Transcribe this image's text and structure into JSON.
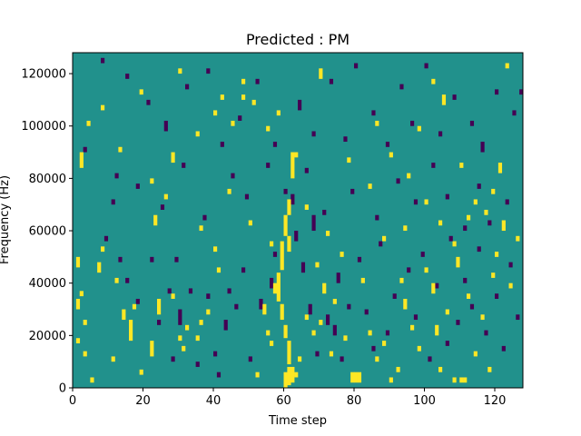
{
  "chart_data": {
    "type": "heatmap",
    "title": "Predicted : PM",
    "xlabel": "Time step",
    "ylabel": "Frequency (Hz)",
    "xlim": [
      0,
      128
    ],
    "ylim": [
      0,
      128000
    ],
    "xticks": [
      0,
      20,
      40,
      60,
      80,
      100,
      120
    ],
    "yticks": [
      0,
      20000,
      40000,
      60000,
      80000,
      100000,
      120000
    ],
    "xtick_labels": [
      "0",
      "20",
      "40",
      "60",
      "80",
      "100",
      "120"
    ],
    "ytick_labels": [
      "0",
      "20000",
      "40000",
      "60000",
      "80000",
      "100000",
      "120000"
    ],
    "grid": "128x128",
    "colormap": "viridis",
    "colors": {
      "background": "#21918c",
      "high": "#fde725",
      "low": "#440154"
    },
    "background_value": 0,
    "high_cells": [
      [
        60,
        0,
        6
      ],
      [
        61,
        1,
        8
      ],
      [
        62,
        2,
        8
      ],
      [
        61,
        9,
        18
      ],
      [
        60,
        19,
        24
      ],
      [
        59,
        26,
        32
      ],
      [
        58,
        33,
        44
      ],
      [
        59,
        45,
        56
      ],
      [
        61,
        52,
        58
      ],
      [
        60,
        58,
        66
      ],
      [
        61,
        66,
        72
      ],
      [
        62,
        80,
        90
      ],
      [
        2,
        84,
        90
      ],
      [
        1,
        46,
        50
      ],
      [
        1,
        30,
        34
      ],
      [
        2,
        35,
        37
      ],
      [
        3,
        24,
        26
      ],
      [
        1,
        17,
        19
      ],
      [
        3,
        12,
        14
      ],
      [
        5,
        2,
        4
      ],
      [
        7,
        44,
        48
      ],
      [
        8,
        52,
        54
      ],
      [
        11,
        10,
        12
      ],
      [
        12,
        40,
        42
      ],
      [
        14,
        26,
        30
      ],
      [
        16,
        18,
        26
      ],
      [
        17,
        30,
        32
      ],
      [
        19,
        5,
        7
      ],
      [
        22,
        12,
        18
      ],
      [
        24,
        28,
        34
      ],
      [
        23,
        62,
        66
      ],
      [
        26,
        72,
        74
      ],
      [
        28,
        34,
        36
      ],
      [
        30,
        18,
        20
      ],
      [
        31,
        14,
        16
      ],
      [
        32,
        22,
        24
      ],
      [
        35,
        18,
        20
      ],
      [
        36,
        24,
        26
      ],
      [
        38,
        28,
        30
      ],
      [
        36,
        60,
        62
      ],
      [
        40,
        52,
        54
      ],
      [
        41,
        44,
        46
      ],
      [
        42,
        110,
        112
      ],
      [
        45,
        100,
        102
      ],
      [
        48,
        116,
        118
      ],
      [
        51,
        108,
        110
      ],
      [
        52,
        4,
        6
      ],
      [
        54,
        28,
        32
      ],
      [
        55,
        20,
        22
      ],
      [
        56,
        16,
        18
      ],
      [
        57,
        36,
        40
      ],
      [
        63,
        4,
        6
      ],
      [
        64,
        10,
        12
      ],
      [
        66,
        26,
        28
      ],
      [
        68,
        20,
        22
      ],
      [
        69,
        46,
        48
      ],
      [
        70,
        24,
        26
      ],
      [
        71,
        36,
        40
      ],
      [
        73,
        12,
        14
      ],
      [
        74,
        32,
        34
      ],
      [
        77,
        18,
        20
      ],
      [
        79,
        2,
        6
      ],
      [
        80,
        2,
        6
      ],
      [
        81,
        2,
        6
      ],
      [
        84,
        20,
        22
      ],
      [
        86,
        10,
        12
      ],
      [
        88,
        16,
        18
      ],
      [
        90,
        2,
        4
      ],
      [
        92,
        6,
        8
      ],
      [
        93,
        40,
        42
      ],
      [
        94,
        30,
        34
      ],
      [
        96,
        22,
        24
      ],
      [
        98,
        14,
        16
      ],
      [
        100,
        44,
        46
      ],
      [
        102,
        36,
        40
      ],
      [
        103,
        20,
        24
      ],
      [
        104,
        6,
        8
      ],
      [
        106,
        28,
        30
      ],
      [
        108,
        2,
        4
      ],
      [
        109,
        46,
        50
      ],
      [
        110,
        2,
        4
      ],
      [
        111,
        2,
        4
      ],
      [
        112,
        34,
        36
      ],
      [
        114,
        12,
        14
      ],
      [
        116,
        26,
        28
      ],
      [
        118,
        6,
        8
      ],
      [
        119,
        42,
        44
      ],
      [
        120,
        50,
        52
      ],
      [
        122,
        60,
        64
      ],
      [
        124,
        38,
        40
      ],
      [
        4,
        100,
        102
      ],
      [
        8,
        106,
        108
      ],
      [
        13,
        90,
        92
      ],
      [
        19,
        112,
        114
      ],
      [
        22,
        78,
        80
      ],
      [
        30,
        120,
        122
      ],
      [
        35,
        96,
        98
      ],
      [
        40,
        104,
        106
      ],
      [
        48,
        110,
        112
      ],
      [
        55,
        98,
        100
      ],
      [
        58,
        104,
        106
      ],
      [
        63,
        88,
        90
      ],
      [
        70,
        118,
        122
      ],
      [
        78,
        86,
        88
      ],
      [
        84,
        76,
        78
      ],
      [
        86,
        100,
        102
      ],
      [
        90,
        88,
        90
      ],
      [
        95,
        80,
        82
      ],
      [
        98,
        98,
        100
      ],
      [
        102,
        116,
        118
      ],
      [
        105,
        108,
        112
      ],
      [
        110,
        84,
        86
      ],
      [
        114,
        70,
        72
      ],
      [
        117,
        66,
        68
      ],
      [
        119,
        74,
        76
      ],
      [
        121,
        82,
        86
      ],
      [
        123,
        122,
        124
      ],
      [
        126,
        56,
        58
      ],
      [
        28,
        86,
        90
      ],
      [
        44,
        74,
        76
      ],
      [
        50,
        62,
        64
      ],
      [
        56,
        54,
        56
      ],
      [
        66,
        68,
        70
      ],
      [
        72,
        58,
        60
      ],
      [
        76,
        50,
        52
      ],
      [
        82,
        40,
        42
      ],
      [
        88,
        56,
        58
      ],
      [
        94,
        60,
        62
      ],
      [
        100,
        70,
        72
      ],
      [
        104,
        62,
        64
      ],
      [
        108,
        54,
        56
      ],
      [
        112,
        64,
        66
      ]
    ],
    "low_cells": [
      [
        3,
        90,
        92
      ],
      [
        9,
        56,
        58
      ],
      [
        11,
        70,
        72
      ],
      [
        13,
        48,
        50
      ],
      [
        15,
        40,
        42
      ],
      [
        18,
        32,
        34
      ],
      [
        22,
        48,
        50
      ],
      [
        24,
        24,
        26
      ],
      [
        27,
        36,
        38
      ],
      [
        28,
        10,
        12
      ],
      [
        29,
        48,
        50
      ],
      [
        30,
        24,
        30
      ],
      [
        33,
        36,
        38
      ],
      [
        35,
        8,
        10
      ],
      [
        38,
        34,
        36
      ],
      [
        40,
        12,
        14
      ],
      [
        41,
        4,
        6
      ],
      [
        43,
        22,
        26
      ],
      [
        44,
        36,
        38
      ],
      [
        46,
        30,
        32
      ],
      [
        48,
        44,
        46
      ],
      [
        50,
        10,
        12
      ],
      [
        53,
        30,
        34
      ],
      [
        56,
        38,
        42
      ],
      [
        57,
        50,
        52
      ],
      [
        62,
        70,
        74
      ],
      [
        63,
        56,
        60
      ],
      [
        65,
        44,
        48
      ],
      [
        67,
        28,
        32
      ],
      [
        68,
        60,
        66
      ],
      [
        69,
        12,
        14
      ],
      [
        72,
        24,
        28
      ],
      [
        74,
        20,
        24
      ],
      [
        75,
        40,
        44
      ],
      [
        76,
        10,
        12
      ],
      [
        78,
        30,
        32
      ],
      [
        81,
        48,
        50
      ],
      [
        83,
        28,
        30
      ],
      [
        85,
        14,
        16
      ],
      [
        87,
        54,
        56
      ],
      [
        89,
        20,
        22
      ],
      [
        91,
        34,
        36
      ],
      [
        95,
        44,
        46
      ],
      [
        97,
        26,
        28
      ],
      [
        99,
        50,
        52
      ],
      [
        101,
        10,
        12
      ],
      [
        103,
        38,
        40
      ],
      [
        106,
        16,
        18
      ],
      [
        107,
        56,
        58
      ],
      [
        109,
        24,
        26
      ],
      [
        111,
        40,
        42
      ],
      [
        113,
        30,
        32
      ],
      [
        115,
        52,
        54
      ],
      [
        117,
        20,
        22
      ],
      [
        120,
        34,
        36
      ],
      [
        122,
        14,
        16
      ],
      [
        124,
        46,
        48
      ],
      [
        126,
        26,
        28
      ],
      [
        8,
        124,
        126
      ],
      [
        15,
        118,
        120
      ],
      [
        21,
        108,
        110
      ],
      [
        26,
        98,
        102
      ],
      [
        32,
        114,
        116
      ],
      [
        38,
        120,
        122
      ],
      [
        42,
        92,
        94
      ],
      [
        47,
        102,
        104
      ],
      [
        52,
        116,
        118
      ],
      [
        57,
        92,
        94
      ],
      [
        64,
        106,
        110
      ],
      [
        68,
        96,
        98
      ],
      [
        73,
        116,
        118
      ],
      [
        77,
        94,
        96
      ],
      [
        80,
        122,
        124
      ],
      [
        85,
        104,
        106
      ],
      [
        89,
        92,
        94
      ],
      [
        93,
        114,
        116
      ],
      [
        96,
        100,
        102
      ],
      [
        100,
        122,
        124
      ],
      [
        104,
        96,
        98
      ],
      [
        108,
        110,
        112
      ],
      [
        113,
        100,
        102
      ],
      [
        116,
        90,
        94
      ],
      [
        120,
        112,
        114
      ],
      [
        125,
        104,
        106
      ],
      [
        127,
        112,
        114
      ],
      [
        12,
        80,
        82
      ],
      [
        18,
        76,
        78
      ],
      [
        25,
        68,
        70
      ],
      [
        31,
        84,
        86
      ],
      [
        37,
        64,
        66
      ],
      [
        45,
        80,
        82
      ],
      [
        49,
        72,
        74
      ],
      [
        55,
        84,
        86
      ],
      [
        60,
        74,
        76
      ],
      [
        66,
        82,
        84
      ],
      [
        71,
        66,
        68
      ],
      [
        79,
        74,
        76
      ],
      [
        86,
        64,
        66
      ],
      [
        92,
        78,
        80
      ],
      [
        97,
        70,
        72
      ],
      [
        102,
        84,
        86
      ],
      [
        106,
        72,
        74
      ],
      [
        111,
        60,
        62
      ],
      [
        115,
        76,
        78
      ],
      [
        118,
        62,
        64
      ],
      [
        123,
        70,
        72
      ]
    ]
  }
}
